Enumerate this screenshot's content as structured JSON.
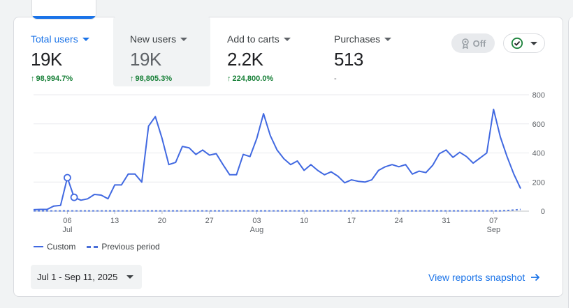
{
  "metrics": [
    {
      "label": "Total users",
      "value": "19K",
      "change": "98,994.7%",
      "trend": "up"
    },
    {
      "label": "New users",
      "value": "19K",
      "change": "98,805.3%",
      "trend": "up"
    },
    {
      "label": "Add to carts",
      "value": "2.2K",
      "change": "224,800.0%",
      "trend": "up"
    },
    {
      "label": "Purchases",
      "value": "513",
      "change": "-",
      "trend": "none"
    }
  ],
  "toggle": {
    "label": "Off",
    "icon": "insights-icon"
  },
  "status_button": {
    "icon": "check-circle-icon"
  },
  "colors": {
    "accent": "#1a73e8",
    "series": "#4169e1",
    "positive": "#188038"
  },
  "legend": {
    "custom": "Custom",
    "previous": "Previous period"
  },
  "date_range": {
    "label": "Jul 1 - Sep 11, 2025"
  },
  "view_link": {
    "label": "View reports snapshot"
  },
  "chart_data": {
    "type": "line",
    "x_ticks": [
      {
        "day": "06",
        "month": "Jul"
      },
      {
        "day": "13",
        "month": ""
      },
      {
        "day": "20",
        "month": ""
      },
      {
        "day": "27",
        "month": ""
      },
      {
        "day": "03",
        "month": "Aug"
      },
      {
        "day": "10",
        "month": ""
      },
      {
        "day": "17",
        "month": ""
      },
      {
        "day": "24",
        "month": ""
      },
      {
        "day": "31",
        "month": ""
      },
      {
        "day": "07",
        "month": "Sep"
      }
    ],
    "y_ticks": [
      0,
      200,
      400,
      600,
      800
    ],
    "ylim": [
      0,
      800
    ],
    "grid": true,
    "x_start": "2025-07-01",
    "series": [
      {
        "name": "Custom",
        "style": "solid",
        "values": [
          10,
          12,
          12,
          35,
          40,
          230,
          95,
          75,
          85,
          115,
          110,
          85,
          180,
          180,
          255,
          255,
          200,
          585,
          650,
          500,
          320,
          335,
          445,
          435,
          390,
          420,
          385,
          395,
          320,
          250,
          250,
          390,
          375,
          500,
          670,
          520,
          420,
          360,
          320,
          345,
          280,
          320,
          280,
          250,
          270,
          240,
          195,
          215,
          205,
          200,
          215,
          280,
          305,
          320,
          305,
          320,
          255,
          275,
          265,
          315,
          395,
          420,
          370,
          405,
          375,
          330,
          365,
          400,
          700,
          510,
          375,
          255,
          155
        ],
        "markers": [
          5,
          6
        ]
      },
      {
        "name": "Previous period",
        "style": "dashed",
        "values": [
          2,
          2,
          2,
          2,
          2,
          2,
          2,
          2,
          2,
          2,
          2,
          2,
          2,
          2,
          2,
          2,
          2,
          2,
          2,
          2,
          2,
          2,
          2,
          2,
          2,
          2,
          2,
          2,
          2,
          2,
          2,
          2,
          2,
          2,
          2,
          2,
          2,
          2,
          2,
          2,
          2,
          2,
          2,
          2,
          2,
          2,
          2,
          2,
          2,
          2,
          2,
          2,
          2,
          2,
          2,
          2,
          2,
          2,
          2,
          2,
          2,
          2,
          2,
          2,
          2,
          2,
          2,
          2,
          2,
          2,
          4,
          8,
          12
        ]
      }
    ]
  }
}
